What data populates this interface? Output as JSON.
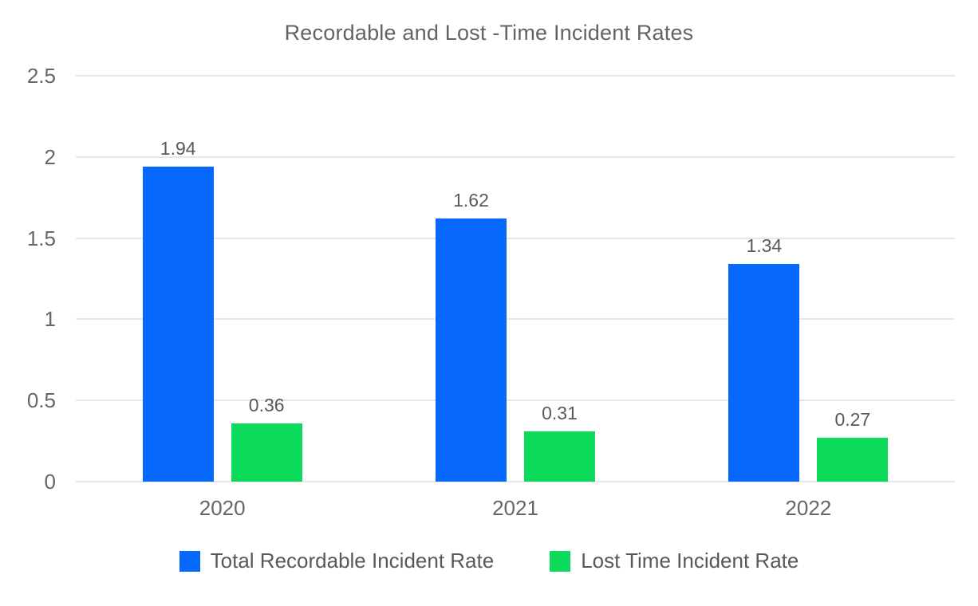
{
  "title": "Recordable and Lost -Time Incident Rates",
  "chart_data": {
    "type": "bar",
    "title": "Recordable and Lost -Time Incident Rates",
    "categories": [
      "2020",
      "2021",
      "2022"
    ],
    "series": [
      {
        "name": "Total Recordable Incident Rate",
        "color": "#0768fd",
        "values": [
          1.94,
          1.62,
          1.34
        ],
        "data_labels": [
          "1.94",
          "1.62",
          "1.34"
        ]
      },
      {
        "name": "Lost Time Incident Rate",
        "color": "#0bda5b",
        "values": [
          0.36,
          0.31,
          0.27
        ],
        "data_labels": [
          "0.36",
          "0.31",
          "0.27"
        ]
      }
    ],
    "xlabel": "",
    "ylabel": "",
    "ylim": [
      0,
      2.5
    ],
    "yticks": [
      0,
      0.5,
      1,
      1.5,
      2,
      2.5
    ],
    "ytick_labels": [
      "0",
      "0.5",
      "1",
      "1.5",
      "2",
      "2.5"
    ],
    "grid": true,
    "legend_position": "bottom",
    "colors": {
      "background": "#ffffff",
      "gridline": "#e7e7e7",
      "axis_text": "#666666",
      "data_label_text": "#595959",
      "title_text": "#636363"
    }
  }
}
